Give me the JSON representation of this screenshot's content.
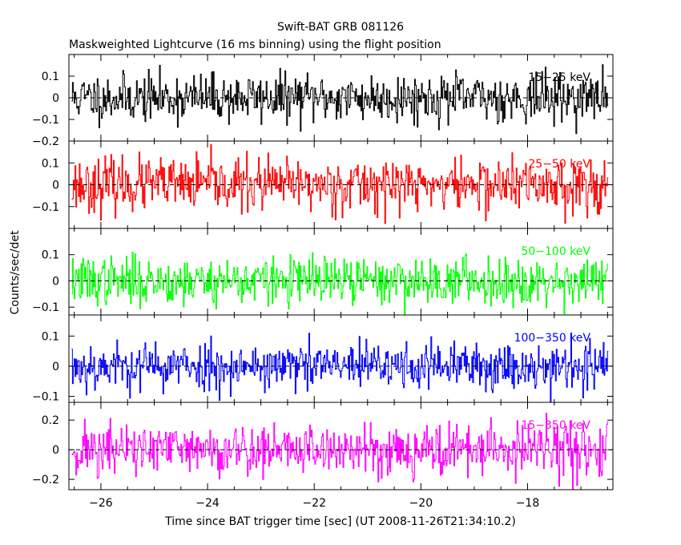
{
  "chart_data": {
    "type": "line",
    "title": "Swift-BAT GRB 081126",
    "subtitle": "Maskweighted Lightcurve (16 ms binning) using the flight position",
    "xlabel": "Time since BAT trigger time [sec] (UT 2008-11-26T21:34:10.2)",
    "ylabel": "Counts/sec/det",
    "xlim": [
      -26.6,
      -16.4
    ],
    "x_ticks": [
      -26,
      -24,
      -22,
      -20,
      -18
    ],
    "x_tick_labels": [
      "−26",
      "−24",
      "−22",
      "−20",
      "−18"
    ],
    "data_x_range": [
      -26.55,
      -16.5
    ],
    "bin_width_s": 0.016,
    "grid": false,
    "zero_line": true,
    "panels": [
      {
        "series_name": "15−25 keV",
        "color": "#000000",
        "ylim": [
          -0.2,
          0.2
        ],
        "y_ticks": [
          0.1,
          0,
          -0.1,
          -0.2
        ],
        "y_tick_labels": [
          "0.1",
          "0",
          "−0.1",
          "−0.2"
        ],
        "amplitude_sigma": 0.055,
        "seed": 11
      },
      {
        "series_name": "25−50 keV",
        "color": "#ff0000",
        "ylim": [
          -0.2,
          0.2
        ],
        "y_ticks": [
          0.1,
          0,
          -0.1
        ],
        "y_tick_labels": [
          "0.1",
          "0",
          "−0.1"
        ],
        "amplitude_sigma": 0.06,
        "seed": 23
      },
      {
        "series_name": "50−100 keV",
        "color": "#00ff00",
        "ylim": [
          -0.13,
          0.2
        ],
        "y_ticks": [
          0.1,
          0,
          -0.1
        ],
        "y_tick_labels": [
          "0.1",
          "0",
          "−0.1"
        ],
        "amplitude_sigma": 0.045,
        "seed": 37
      },
      {
        "series_name": "100−350 keV",
        "color": "#0000ff",
        "ylim": [
          -0.12,
          0.17
        ],
        "y_ticks": [
          0.1,
          0,
          -0.1
        ],
        "y_tick_labels": [
          "0.1",
          "0",
          "−0.1"
        ],
        "amplitude_sigma": 0.04,
        "seed": 53
      },
      {
        "series_name": "15−350 keV",
        "color": "#ff00ff",
        "ylim": [
          -0.27,
          0.32
        ],
        "y_ticks": [
          0.2,
          0,
          -0.2
        ],
        "y_tick_labels": [
          "0.2",
          "0",
          "−0.2"
        ],
        "amplitude_sigma": 0.09,
        "seed": 71
      }
    ]
  }
}
